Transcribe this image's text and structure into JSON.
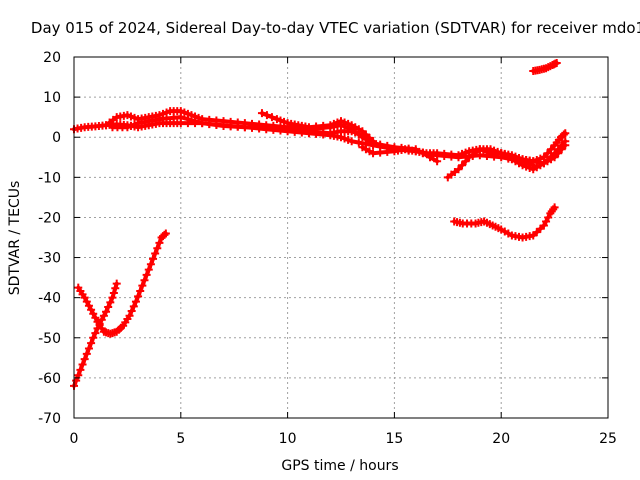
{
  "chart_data": {
    "type": "scatter",
    "title": "Day 015 of 2024, Sidereal Day-to-day VTEC variation (SDTVAR) for receiver mdo1",
    "xlabel": "GPS time / hours",
    "ylabel": "SDTVAR / TECUs",
    "xlim": [
      0,
      25
    ],
    "ylim": [
      -70,
      20
    ],
    "x_ticks": [
      0,
      5,
      10,
      15,
      20,
      25
    ],
    "y_ticks": [
      -70,
      -60,
      -50,
      -40,
      -30,
      -20,
      -10,
      0,
      10,
      20
    ],
    "grid": true,
    "marker": "plus",
    "color": "#ff0000",
    "series": [
      {
        "name": "track-main-1",
        "points": [
          [
            0,
            2
          ],
          [
            0.5,
            2.5
          ],
          [
            1,
            2.7
          ],
          [
            1.5,
            3
          ],
          [
            2,
            3.2
          ],
          [
            2.5,
            3
          ],
          [
            3,
            2.5
          ],
          [
            3.5,
            3
          ],
          [
            4,
            3.5
          ],
          [
            4.5,
            3.5
          ],
          [
            5,
            3.5
          ],
          [
            6,
            3.5
          ],
          [
            7,
            2.8
          ],
          [
            8,
            2.5
          ],
          [
            9,
            2
          ],
          [
            10,
            1.5
          ],
          [
            11,
            1
          ],
          [
            12,
            0.5
          ],
          [
            12.5,
            0
          ],
          [
            13,
            -1
          ],
          [
            14,
            -2
          ],
          [
            15,
            -3
          ],
          [
            16,
            -3.5
          ],
          [
            17,
            -4.5
          ],
          [
            18,
            -5
          ],
          [
            19,
            -4.5
          ],
          [
            20,
            -5
          ],
          [
            21,
            -6
          ],
          [
            21.5,
            -7
          ]
        ]
      },
      {
        "name": "track-main-2",
        "points": [
          [
            1.5,
            3
          ],
          [
            2,
            5
          ],
          [
            2.5,
            5.5
          ],
          [
            3,
            4.5
          ],
          [
            3.5,
            5
          ],
          [
            4,
            5.5
          ],
          [
            4.5,
            6.5
          ],
          [
            5,
            6.5
          ],
          [
            5.5,
            5.5
          ],
          [
            6,
            4.5
          ],
          [
            7,
            4
          ],
          [
            8,
            3.5
          ],
          [
            9,
            3
          ],
          [
            10,
            2.5
          ],
          [
            11,
            2
          ],
          [
            12,
            2.5
          ],
          [
            12.5,
            3
          ],
          [
            13,
            2
          ],
          [
            13.5,
            0
          ],
          [
            14,
            -1.5
          ],
          [
            15,
            -2.5
          ],
          [
            16,
            -3
          ],
          [
            17,
            -6
          ]
        ]
      },
      {
        "name": "track-main-3",
        "points": [
          [
            1.8,
            2.5
          ],
          [
            2.5,
            2.5
          ],
          [
            3,
            3.5
          ],
          [
            4,
            4.5
          ],
          [
            5,
            5
          ],
          [
            6,
            3.5
          ],
          [
            7,
            3
          ],
          [
            8,
            2.5
          ],
          [
            9,
            2.5
          ],
          [
            10,
            2
          ],
          [
            11,
            1.5
          ],
          [
            12,
            1
          ],
          [
            12.5,
            1.5
          ],
          [
            13,
            1.5
          ],
          [
            13.5,
            0.5
          ],
          [
            14,
            -1
          ]
        ]
      },
      {
        "name": "track-main-4",
        "points": [
          [
            8.8,
            6
          ],
          [
            9.5,
            4.5
          ],
          [
            10,
            3.5
          ],
          [
            10.5,
            3
          ],
          [
            11,
            2.5
          ],
          [
            12,
            3
          ],
          [
            12.5,
            4
          ],
          [
            13,
            3
          ],
          [
            13.5,
            1.5
          ],
          [
            14,
            -1
          ]
        ]
      },
      {
        "name": "track-main-5",
        "points": [
          [
            13.5,
            -2.5
          ],
          [
            14,
            -4
          ],
          [
            15,
            -3.5
          ],
          [
            15.5,
            -3
          ],
          [
            16,
            -3.5
          ],
          [
            16.5,
            -4
          ],
          [
            17,
            -4
          ],
          [
            18,
            -4.5
          ],
          [
            18.5,
            -3.5
          ],
          [
            19,
            -3
          ],
          [
            19.5,
            -3
          ],
          [
            20,
            -4
          ],
          [
            20.5,
            -5
          ],
          [
            21,
            -5.5
          ],
          [
            21.5,
            -6
          ],
          [
            22,
            -5
          ],
          [
            22.5,
            -2
          ],
          [
            22.8,
            0
          ],
          [
            23,
            1
          ]
        ]
      },
      {
        "name": "track-main-6",
        "points": [
          [
            17.5,
            -10
          ],
          [
            18,
            -8
          ],
          [
            18.5,
            -5
          ],
          [
            19,
            -3
          ],
          [
            19.5,
            -4
          ],
          [
            20,
            -4
          ],
          [
            20.5,
            -4.5
          ],
          [
            21,
            -5.5
          ],
          [
            21.5,
            -6
          ],
          [
            22,
            -6.5
          ],
          [
            22.5,
            -5
          ],
          [
            23,
            -2
          ]
        ]
      },
      {
        "name": "track-main-7",
        "points": [
          [
            20,
            -4
          ],
          [
            20.5,
            -5.5
          ],
          [
            21,
            -7
          ],
          [
            21.5,
            -8
          ],
          [
            22,
            -6.5
          ],
          [
            22.5,
            -4
          ],
          [
            23,
            -1
          ]
        ]
      },
      {
        "name": "track-low-right",
        "points": [
          [
            17.8,
            -21
          ],
          [
            18.2,
            -21.5
          ],
          [
            18.8,
            -21.5
          ],
          [
            19.2,
            -21
          ],
          [
            19.6,
            -22
          ],
          [
            20,
            -23
          ],
          [
            20.5,
            -24.5
          ],
          [
            21,
            -25
          ],
          [
            21.5,
            -24.5
          ],
          [
            22,
            -22
          ],
          [
            22.3,
            -19
          ],
          [
            22.5,
            -17.5
          ]
        ]
      },
      {
        "name": "track-top-right",
        "points": [
          [
            21.5,
            16.5
          ],
          [
            21.8,
            16.8
          ],
          [
            22.1,
            17.2
          ],
          [
            22.4,
            18
          ],
          [
            22.6,
            18.5
          ]
        ]
      },
      {
        "name": "track-rise-steep",
        "points": [
          [
            0,
            -62
          ],
          [
            0.3,
            -58
          ],
          [
            0.6,
            -54
          ],
          [
            0.9,
            -50
          ],
          [
            1.2,
            -46.5
          ],
          [
            1.5,
            -43.5
          ],
          [
            1.8,
            -40
          ],
          [
            2,
            -36.5
          ]
        ]
      },
      {
        "name": "track-dip",
        "points": [
          [
            0.2,
            -37.5
          ],
          [
            0.5,
            -40
          ],
          [
            0.8,
            -43
          ],
          [
            1.1,
            -46
          ],
          [
            1.4,
            -48.5
          ],
          [
            1.7,
            -49
          ],
          [
            2,
            -48.5
          ],
          [
            2.3,
            -47
          ],
          [
            2.6,
            -44.5
          ],
          [
            2.9,
            -41
          ],
          [
            3.2,
            -37
          ],
          [
            3.5,
            -33
          ],
          [
            3.8,
            -29
          ],
          [
            4.1,
            -25
          ],
          [
            4.3,
            -24
          ]
        ]
      }
    ]
  }
}
